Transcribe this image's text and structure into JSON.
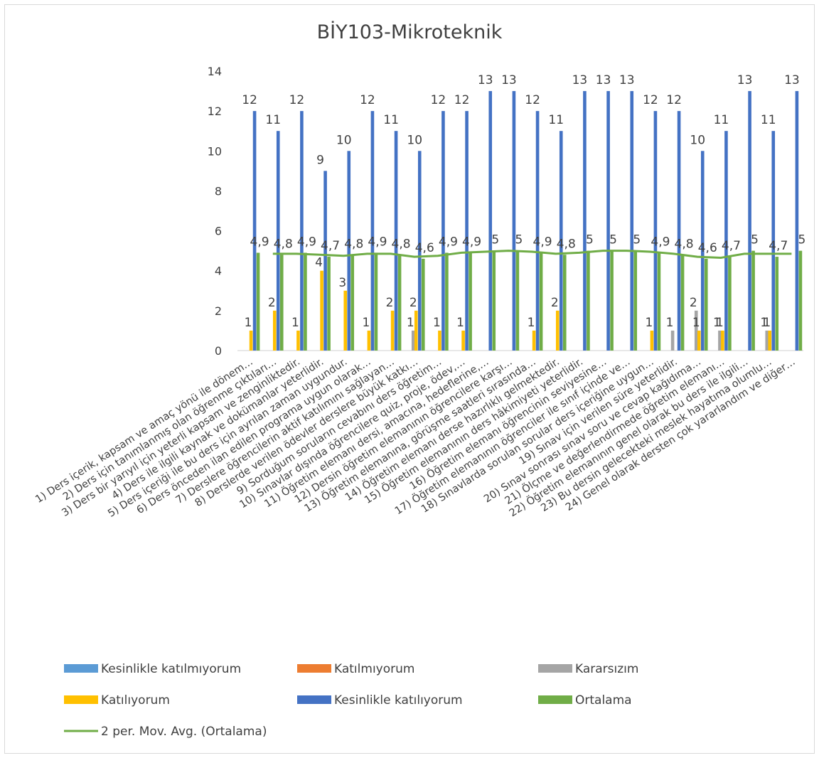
{
  "chart_data": {
    "type": "bar",
    "title": "BİY103-Mikroteknik",
    "ylim": [
      0,
      14
    ],
    "yticks": [
      0,
      2,
      4,
      6,
      8,
      10,
      12,
      14
    ],
    "grid": false,
    "legend_position": "bottom",
    "categories": [
      "1) Ders içerik, kapsam ve amaç yönü ile dönem…",
      "2) Ders için tanımlanmış olan öğrenme çıktıları…",
      "3) Ders bir yarıyıl için yeterli kapsam ve zenginliktedir.",
      "4) Ders ile ilgili kaynak ve dokümanlar yeterlidir.",
      "5) Ders içeriği ile bu ders için ayrılan zaman uygundur.",
      "6) Ders önceden ilan edilen programa uygun olarak…",
      "7) Derslere öğrencilerin aktif katılımını sağlayan…",
      "8) Derslerde verilen ödevler derslere büyük katkı…",
      "9) Sorduğum soruların cevabını ders öğretim…",
      "10) Sınavlar dışında öğrencilere quiz, proje, ödev,…",
      "11) Öğretim elemanı dersi, amacına, hedeflerine,…",
      "12) Dersin öğretim elemanının öğrencilere karşı…",
      "13) Öğretim elemanına, görüşme saatleri sırasında…",
      "14) Öğretim elemanı derse hazırlıklı gelmektedir.",
      "15) Öğretim elemanının ders hâkimiyeti yeterlidir.",
      "16) Öğretim elemanı öğrencinin seviyesine…",
      "17) Öğretim elemanının öğrenciler ile sınıf içinde ve…",
      "18) Sınavlarda sorulan sorular ders içeriğine uygun…",
      "19) Sınav için verilen süre yeterlidir.",
      "20) Sınav sonrası sınav soru ve cevap kağıdıma…",
      "21) Ölçme ve değerlendirmede öğretim elemanı…",
      "22) Öğretim elemanının genel olarak bu ders ile ilgili…",
      "23) Bu dersin gelecekteki meslek hayatıma olumlu…",
      "24) Genel olarak dersten çok yararlandım ve diğer…"
    ],
    "series": [
      {
        "name": "Kesinlikle katılmıyorum",
        "color": "#5b9bd5",
        "values": [
          0,
          0,
          0,
          0,
          0,
          0,
          0,
          0,
          0,
          0,
          0,
          0,
          0,
          0,
          0,
          0,
          0,
          0,
          0,
          0,
          0,
          0,
          0,
          0
        ]
      },
      {
        "name": "Katılmıyorum",
        "color": "#ed7d31",
        "values": [
          0,
          0,
          0,
          0,
          0,
          0,
          0,
          0,
          0,
          0,
          0,
          0,
          0,
          0,
          0,
          0,
          0,
          0,
          0,
          0,
          0,
          0,
          0,
          0
        ]
      },
      {
        "name": "Kararsızım",
        "color": "#a5a5a5",
        "values": [
          null,
          null,
          null,
          null,
          null,
          null,
          null,
          1,
          null,
          null,
          null,
          null,
          null,
          null,
          null,
          null,
          null,
          null,
          1,
          2,
          1,
          null,
          1,
          null
        ],
        "labels": [
          "",
          "",
          "",
          "",
          "",
          "",
          "",
          "1",
          "",
          "",
          "",
          "",
          "",
          "",
          "",
          "",
          "",
          "",
          "1",
          "2",
          "1",
          "",
          "1",
          ""
        ]
      },
      {
        "name": "Katılıyorum",
        "color": "#ffc000",
        "values": [
          1,
          2,
          1,
          4,
          3,
          1,
          2,
          2,
          1,
          1,
          null,
          null,
          1,
          2,
          null,
          null,
          null,
          1,
          null,
          1,
          1,
          null,
          1,
          null
        ],
        "labels": [
          "1",
          "2",
          "1",
          "4",
          "3",
          "1",
          "2",
          "2",
          "1",
          "1",
          "",
          "",
          "1",
          "2",
          "",
          "",
          "",
          "1",
          "",
          "1",
          "1",
          "",
          "1",
          ""
        ]
      },
      {
        "name": "Kesinlikle katılıyorum",
        "color": "#4472c4",
        "values": [
          12,
          11,
          12,
          9,
          10,
          12,
          11,
          10,
          12,
          12,
          13,
          13,
          12,
          11,
          13,
          13,
          13,
          12,
          12,
          10,
          11,
          13,
          11,
          13
        ],
        "labels": [
          "12",
          "11",
          "12",
          "9",
          "10",
          "12",
          "11",
          "10",
          "12",
          "12",
          "13",
          "13",
          "12",
          "11",
          "13",
          "13",
          "13",
          "12",
          "12",
          "10",
          "11",
          "13",
          "11",
          "13"
        ]
      },
      {
        "name": "Ortalama",
        "color": "#70ad47",
        "values": [
          4.9,
          4.8,
          4.9,
          4.7,
          4.8,
          4.9,
          4.8,
          4.6,
          4.9,
          4.9,
          5,
          5,
          4.9,
          4.8,
          5,
          5,
          5,
          4.9,
          4.8,
          4.6,
          4.7,
          5,
          4.7,
          5
        ],
        "labels": [
          "4,9",
          "4,8",
          "4,9",
          "4,7",
          "4,8",
          "4,9",
          "4,8",
          "4,6",
          "4,9",
          "4,9",
          "5",
          "5",
          "4,9",
          "4,8",
          "5",
          "5",
          "5",
          "4,9",
          "4,8",
          "4,6",
          "4,7",
          "5",
          "4,7",
          "5"
        ]
      }
    ],
    "trendline": {
      "name": "2 per. Mov. Avg. (Ortalama)",
      "color": "#70ad47",
      "period": 2,
      "of_series": "Ortalama"
    }
  },
  "legend": {
    "items": [
      {
        "label": "Kesinlikle katılmıyorum",
        "color": "#5b9bd5",
        "kind": "box"
      },
      {
        "label": "Katılmıyorum",
        "color": "#ed7d31",
        "kind": "box"
      },
      {
        "label": "Kararsızım",
        "color": "#a5a5a5",
        "kind": "box"
      },
      {
        "label": "Katılıyorum",
        "color": "#ffc000",
        "kind": "box"
      },
      {
        "label": "Kesinlikle katılıyorum",
        "color": "#4472c4",
        "kind": "box"
      },
      {
        "label": "Ortalama",
        "color": "#70ad47",
        "kind": "box"
      },
      {
        "label": "2 per. Mov. Avg. (Ortalama)",
        "color": "#70ad47",
        "kind": "line"
      }
    ]
  }
}
